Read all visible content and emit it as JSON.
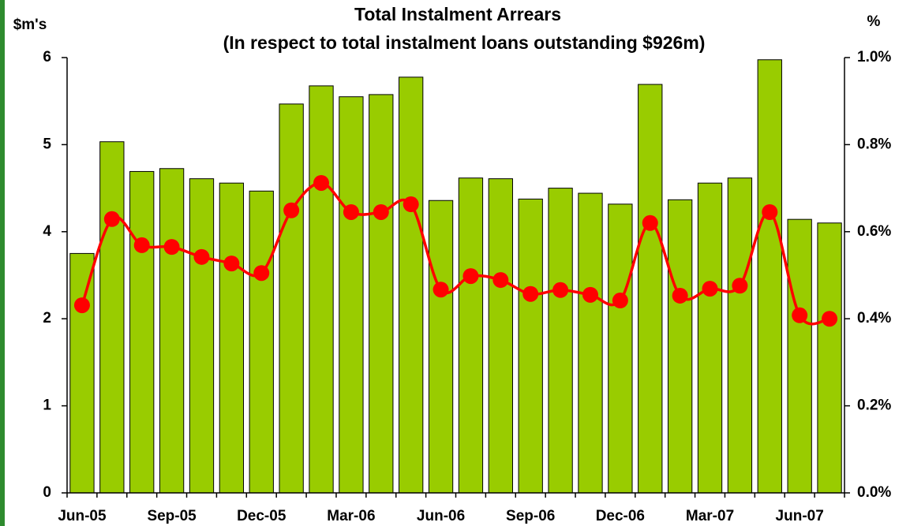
{
  "chart_data": {
    "type": "bar_line",
    "title": "Total Instalment Arrears",
    "subtitle": "(In respect to total instalment loans outstanding $926m)",
    "y_label": "$m's",
    "y2_label": "%",
    "categories": [
      "Jun-05",
      null,
      null,
      "Sep-05",
      null,
      null,
      "Dec-05",
      null,
      null,
      "Mar-06",
      null,
      null,
      "Jun-06",
      null,
      null,
      "Sep-06",
      null,
      null,
      "Dec-06",
      null,
      null,
      "Mar-07",
      null,
      null,
      "Jun-07",
      null
    ],
    "series": [
      {
        "name": "Arrears",
        "type": "bar",
        "color": "#99cc00",
        "values": [
          3.3,
          4.84,
          4.43,
          4.47,
          4.33,
          4.27,
          4.16,
          5.36,
          5.61,
          5.46,
          5.49,
          5.73,
          4.03,
          4.34,
          4.33,
          4.05,
          4.2,
          4.13,
          3.98,
          5.63,
          4.04,
          4.27,
          4.34,
          5.97,
          3.77,
          3.72
        ]
      },
      {
        "name": "Arrears %",
        "type": "line",
        "axis": "y2",
        "color": "#ff0000",
        "values": [
          0.431,
          0.629,
          0.569,
          0.565,
          0.542,
          0.527,
          0.505,
          0.649,
          0.712,
          0.645,
          0.645,
          0.663,
          0.467,
          0.498,
          0.489,
          0.457,
          0.466,
          0.455,
          0.442,
          0.62,
          0.453,
          0.469,
          0.476,
          0.645,
          0.408,
          0.4
        ]
      }
    ],
    "ylim": [
      0,
      6
    ],
    "yticks": [
      0,
      {
        "value": 1.2,
        "label": "1"
      },
      {
        "value": 2.4,
        "label": "2"
      },
      {
        "value": 3.6,
        "label": "4"
      },
      {
        "value": 4.8,
        "label": "5"
      },
      6
    ],
    "y2lim": [
      0,
      1
    ],
    "y2ticks": [
      {
        "value": 0,
        "label": "0.0%"
      },
      {
        "value": 0.2,
        "label": "0.2%"
      },
      {
        "value": 0.4,
        "label": "0.4%"
      },
      {
        "value": 0.6,
        "label": "0.6%"
      },
      {
        "value": 0.8,
        "label": "0.8%"
      },
      {
        "value": 1,
        "label": "1.0%"
      }
    ]
  }
}
